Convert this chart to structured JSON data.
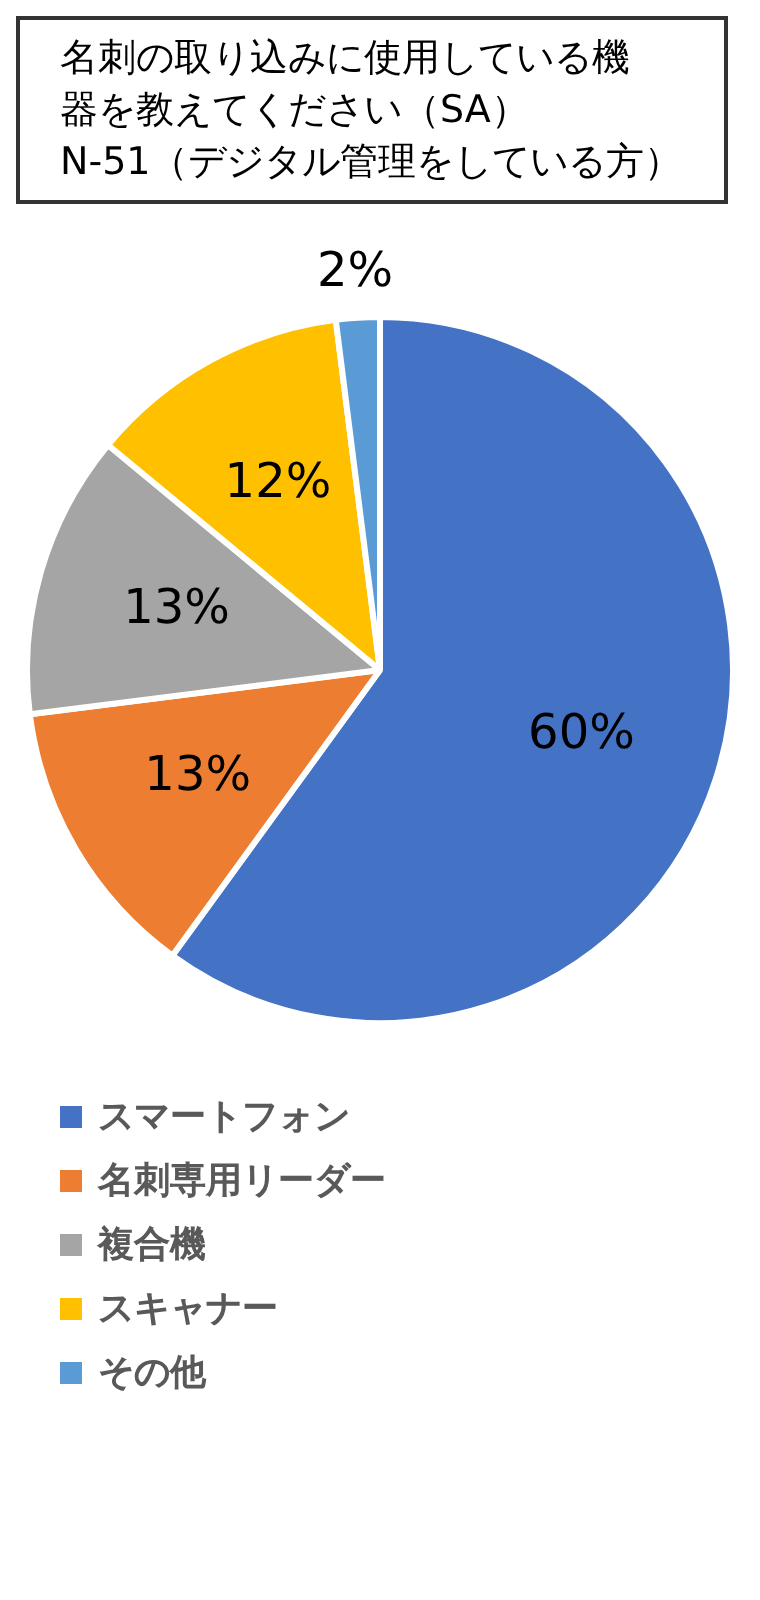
{
  "chart_data": {
    "type": "pie",
    "title": "名刺の取り込みに使用している機器を教えてください（SA）",
    "subtitle": "N-51（デジタル管理をしている方）",
    "categories": [
      "スマートフォン",
      "名刺専用リーダー",
      "複合機",
      "スキャナー",
      "その他"
    ],
    "values": [
      60,
      13,
      13,
      12,
      2
    ],
    "colors": [
      "#4472c4",
      "#ed7d31",
      "#a5a5a5",
      "#ffc000",
      "#5b9bd5"
    ],
    "value_labels": [
      "60%",
      "13%",
      "13%",
      "12%",
      "2%"
    ],
    "legend": "bottom"
  }
}
